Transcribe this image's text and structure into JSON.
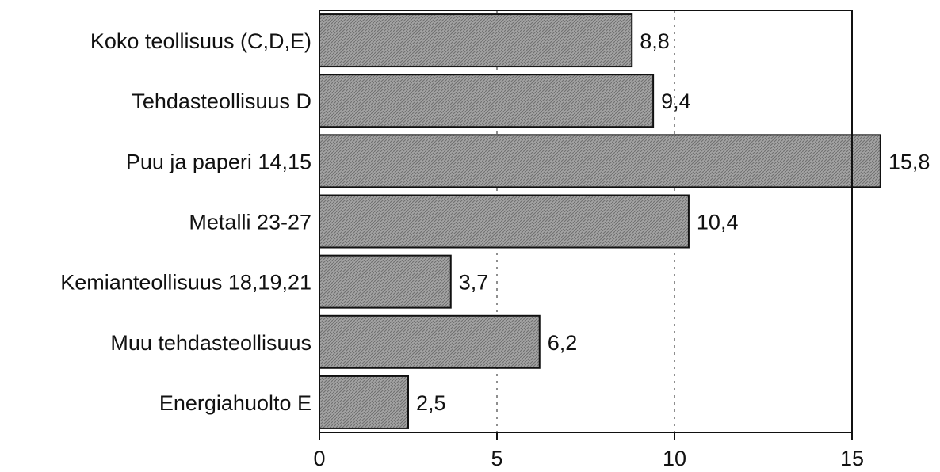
{
  "chart_data": {
    "type": "bar",
    "orientation": "horizontal",
    "categories": [
      "Koko teollisuus (C,D,E)",
      "Tehdasteollisuus D",
      "Puu ja paperi 14,15",
      "Metalli 23-27",
      "Kemianteollisuus 18,19,21",
      "Muu tehdasteollisuus",
      "Energiahuolto E"
    ],
    "values": [
      8.8,
      9.4,
      15.8,
      10.4,
      3.7,
      6.2,
      2.5
    ],
    "value_labels": [
      "8,8",
      "9,4",
      "15,8",
      "10,4",
      "3,7",
      "6,2",
      "2,5"
    ],
    "xlim": [
      0,
      15
    ],
    "xticks": [
      0,
      5,
      10,
      15
    ],
    "xtick_labels": [
      "0",
      "5",
      "10",
      "15"
    ],
    "grid": "vertical dotted at 5 and 10",
    "bar_color": "#9a9a9a",
    "title": "",
    "xlabel": "",
    "ylabel": ""
  }
}
